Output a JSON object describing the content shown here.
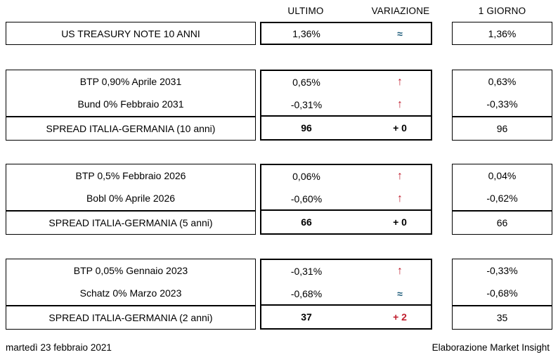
{
  "columns": [
    "ULTIMO",
    "VARIAZIONE",
    "1 GIORNO"
  ],
  "colors": {
    "up_arrow_red": "#C01E2E",
    "flat_blue": "#1B5A78",
    "border_black": "#000000",
    "background": "#FFFFFF"
  },
  "symbols": {
    "up_arrow": "↑",
    "flat": "≈"
  },
  "sections": [
    {
      "rows": [
        {
          "label": "US TREASURY NOTE 10 ANNI",
          "ultimo": "1,36%",
          "variazione": "≈",
          "trend": "flat",
          "giorno": "1,36%"
        }
      ]
    },
    {
      "rows": [
        {
          "label": "BTP 0,90% Aprile 2031",
          "ultimo": "0,65%",
          "variazione": "↑",
          "trend": "up",
          "giorno": "0,63%"
        },
        {
          "label": "Bund 0% Febbraio 2031",
          "ultimo": "-0,31%",
          "variazione": "↑",
          "trend": "up",
          "giorno": "-0,33%"
        }
      ],
      "spread": {
        "label": "SPREAD ITALIA-GERMANIA (10 anni)",
        "ultimo": "96",
        "variazione": "+ 0",
        "variazione_color": "black",
        "giorno": "96"
      }
    },
    {
      "rows": [
        {
          "label": "BTP 0,5% Febbraio 2026",
          "ultimo": "0,06%",
          "variazione": "↑",
          "trend": "up",
          "giorno": "0,04%"
        },
        {
          "label": "Bobl 0% Aprile 2026",
          "ultimo": "-0,60%",
          "variazione": "↑",
          "trend": "up",
          "giorno": "-0,62%"
        }
      ],
      "spread": {
        "label": "SPREAD ITALIA-GERMANIA (5 anni)",
        "ultimo": "66",
        "variazione": "+ 0",
        "variazione_color": "black",
        "giorno": "66"
      }
    },
    {
      "rows": [
        {
          "label": "BTP 0,05% Gennaio 2023",
          "ultimo": "-0,31%",
          "variazione": "↑",
          "trend": "up",
          "giorno": "-0,33%"
        },
        {
          "label": "Schatz 0% Marzo 2023",
          "ultimo": "-0,68%",
          "variazione": "≈",
          "trend": "flat",
          "giorno": "-0,68%"
        }
      ],
      "spread": {
        "label": "SPREAD ITALIA-GERMANIA (2 anni)",
        "ultimo": "37",
        "variazione": "+ 2",
        "variazione_color": "red",
        "giorno": "35"
      }
    }
  ],
  "footer": {
    "date": "martedì 23 febbraio 2021",
    "credit": "Elaborazione Market Insight"
  },
  "chart_data": {
    "type": "table",
    "columns": [
      "",
      "ULTIMO",
      "VARIAZIONE",
      "1 GIORNO"
    ],
    "rows": [
      [
        "US TREASURY NOTE 10 ANNI",
        "1,36%",
        "≈",
        "1,36%"
      ],
      [
        "BTP 0,90% Aprile 2031",
        "0,65%",
        "↑",
        "0,63%"
      ],
      [
        "Bund 0% Febbraio 2031",
        "-0,31%",
        "↑",
        "-0,33%"
      ],
      [
        "SPREAD ITALIA-GERMANIA (10 anni)",
        "96",
        "+ 0",
        "96"
      ],
      [
        "BTP 0,5% Febbraio 2026",
        "0,06%",
        "↑",
        "0,04%"
      ],
      [
        "Bobl 0% Aprile 2026",
        "-0,60%",
        "↑",
        "-0,62%"
      ],
      [
        "SPREAD ITALIA-GERMANIA (5 anni)",
        "66",
        "+ 0",
        "66"
      ],
      [
        "BTP 0,05% Gennaio 2023",
        "-0,31%",
        "↑",
        "-0,33%"
      ],
      [
        "Schatz 0% Marzo 2023",
        "-0,68%",
        "≈",
        "-0,68%"
      ],
      [
        "SPREAD ITALIA-GERMANIA (2 anni)",
        "37",
        "+ 2",
        "35"
      ]
    ],
    "title": "",
    "notes": "Bond yields and Italy-Germany spreads; up arrows red, flat (≈) blue-teal; spread ULTIMO/VARIAZIONE values bold"
  }
}
